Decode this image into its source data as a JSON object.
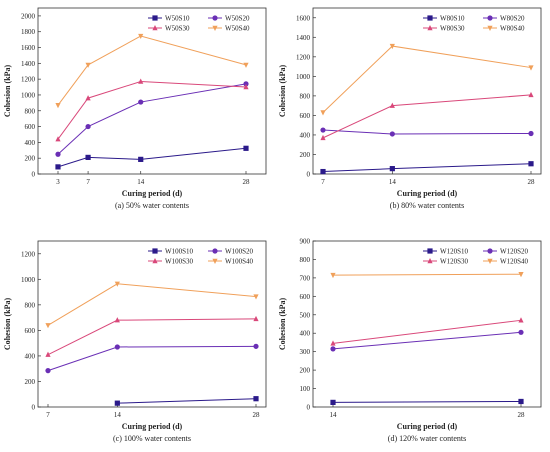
{
  "chart_data": [
    {
      "type": "line",
      "caption": "(a) 50% water contents",
      "xlabel": "Curing period (d)",
      "ylabel": "Cohesion (kPa)",
      "x_ticks": [
        3,
        7,
        14,
        28
      ],
      "y_ticks": [
        0,
        200,
        400,
        600,
        800,
        1000,
        1200,
        1400,
        1600,
        1800,
        2000
      ],
      "xlim": [
        3,
        28
      ],
      "ylim": [
        0,
        2100
      ],
      "series": [
        {
          "name": "W50S10",
          "color": "#2b1a8a",
          "marker": "square",
          "x": [
            3,
            7,
            14,
            28
          ],
          "y": [
            90,
            210,
            185,
            325
          ]
        },
        {
          "name": "W50S20",
          "color": "#6a2fb5",
          "marker": "circle",
          "x": [
            3,
            7,
            14,
            28
          ],
          "y": [
            250,
            600,
            910,
            1140
          ]
        },
        {
          "name": "W50S30",
          "color": "#d9487a",
          "marker": "triangle",
          "x": [
            3,
            7,
            14,
            28
          ],
          "y": [
            440,
            960,
            1170,
            1100
          ]
        },
        {
          "name": "W50S40",
          "color": "#f0a05a",
          "marker": "tri-down",
          "x": [
            3,
            7,
            14,
            28
          ],
          "y": [
            870,
            1380,
            1745,
            1380
          ]
        }
      ]
    },
    {
      "type": "line",
      "caption": "(b) 80% water contents",
      "xlabel": "Curing period (d)",
      "ylabel": "Cohesion (kPa)",
      "x_ticks": [
        7,
        14,
        28
      ],
      "y_ticks": [
        0,
        200,
        400,
        600,
        800,
        1000,
        1200,
        1400,
        1600
      ],
      "xlim": [
        7,
        28
      ],
      "ylim": [
        0,
        1700
      ],
      "series": [
        {
          "name": "W80S10",
          "color": "#2b1a8a",
          "marker": "square",
          "x": [
            7,
            14,
            28
          ],
          "y": [
            25,
            55,
            105
          ]
        },
        {
          "name": "W80S20",
          "color": "#6a2fb5",
          "marker": "circle",
          "x": [
            7,
            14,
            28
          ],
          "y": [
            450,
            410,
            415
          ]
        },
        {
          "name": "W80S30",
          "color": "#d9487a",
          "marker": "triangle",
          "x": [
            7,
            14,
            28
          ],
          "y": [
            370,
            700,
            810
          ]
        },
        {
          "name": "W80S40",
          "color": "#f0a05a",
          "marker": "tri-down",
          "x": [
            7,
            14,
            28
          ],
          "y": [
            630,
            1310,
            1090
          ]
        }
      ]
    },
    {
      "type": "line",
      "caption": "(c) 100% water contents",
      "xlabel": "Curing period (d)",
      "ylabel": "Cohesion (kPa)",
      "x_ticks": [
        7,
        14,
        28
      ],
      "y_ticks": [
        0,
        200,
        400,
        600,
        800,
        1000,
        1200
      ],
      "xlim": [
        7,
        28
      ],
      "ylim": [
        0,
        1300
      ],
      "series": [
        {
          "name": "W100S10",
          "color": "#2b1a8a",
          "marker": "square",
          "x": [
            14,
            28
          ],
          "y": [
            30,
            65
          ]
        },
        {
          "name": "W100S20",
          "color": "#6a2fb5",
          "marker": "circle",
          "x": [
            7,
            14,
            28
          ],
          "y": [
            285,
            470,
            475
          ]
        },
        {
          "name": "W100S30",
          "color": "#d9487a",
          "marker": "triangle",
          "x": [
            7,
            14,
            28
          ],
          "y": [
            410,
            680,
            690
          ]
        },
        {
          "name": "W100S40",
          "color": "#f0a05a",
          "marker": "tri-down",
          "x": [
            7,
            14,
            28
          ],
          "y": [
            640,
            965,
            865
          ]
        }
      ]
    },
    {
      "type": "line",
      "caption": "(d) 120% water contents",
      "xlabel": "Curing period (d)",
      "ylabel": "Cohesion (kPa)",
      "x_ticks": [
        14,
        28
      ],
      "y_ticks": [
        0,
        100,
        200,
        300,
        400,
        500,
        600,
        700,
        800,
        900
      ],
      "xlim": [
        14,
        28
      ],
      "ylim": [
        0,
        900
      ],
      "series": [
        {
          "name": "W120S10",
          "color": "#2b1a8a",
          "marker": "square",
          "x": [
            14,
            28
          ],
          "y": [
            25,
            30
          ]
        },
        {
          "name": "W120S20",
          "color": "#6a2fb5",
          "marker": "circle",
          "x": [
            14,
            28
          ],
          "y": [
            315,
            405
          ]
        },
        {
          "name": "W120S30",
          "color": "#d9487a",
          "marker": "triangle",
          "x": [
            14,
            28
          ],
          "y": [
            345,
            470
          ]
        },
        {
          "name": "W120S40",
          "color": "#f0a05a",
          "marker": "tri-down",
          "x": [
            14,
            28
          ],
          "y": [
            715,
            720
          ]
        }
      ]
    }
  ]
}
